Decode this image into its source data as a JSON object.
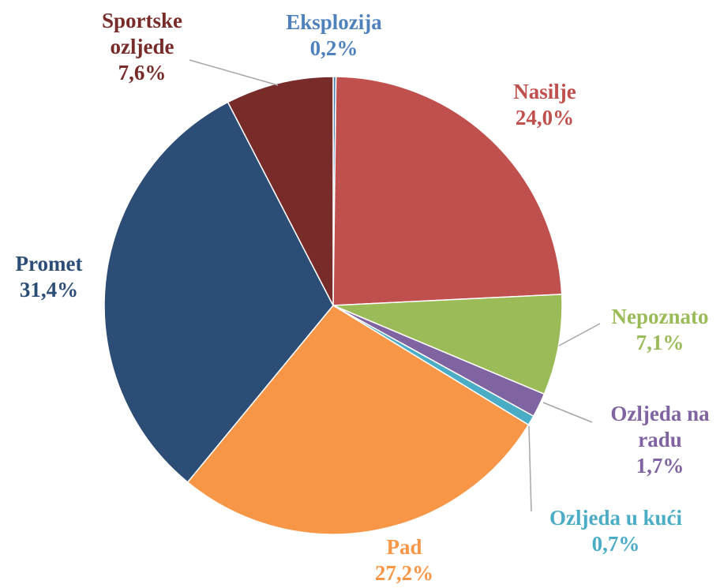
{
  "chart_data": {
    "type": "pie",
    "categories": [
      "Eksplozija",
      "Nasilje",
      "Nepoznato",
      "Ozljeda na radu",
      "Ozljeda u kući",
      "Pad",
      "Promet",
      "Sportske ozljede"
    ],
    "values": [
      0.2,
      24.0,
      7.1,
      1.7,
      0.7,
      27.2,
      31.4,
      7.6
    ],
    "value_labels": [
      "0,2%",
      "24,0%",
      "7,1%",
      "1,7%",
      "0,7%",
      "27,2%",
      "31,4%",
      "7,6%"
    ],
    "colors": [
      "#4f81bd",
      "#c0504d",
      "#9bbb59",
      "#8064a2",
      "#4bacc6",
      "#f79646",
      "#2c4d75",
      "#772c2a"
    ]
  }
}
